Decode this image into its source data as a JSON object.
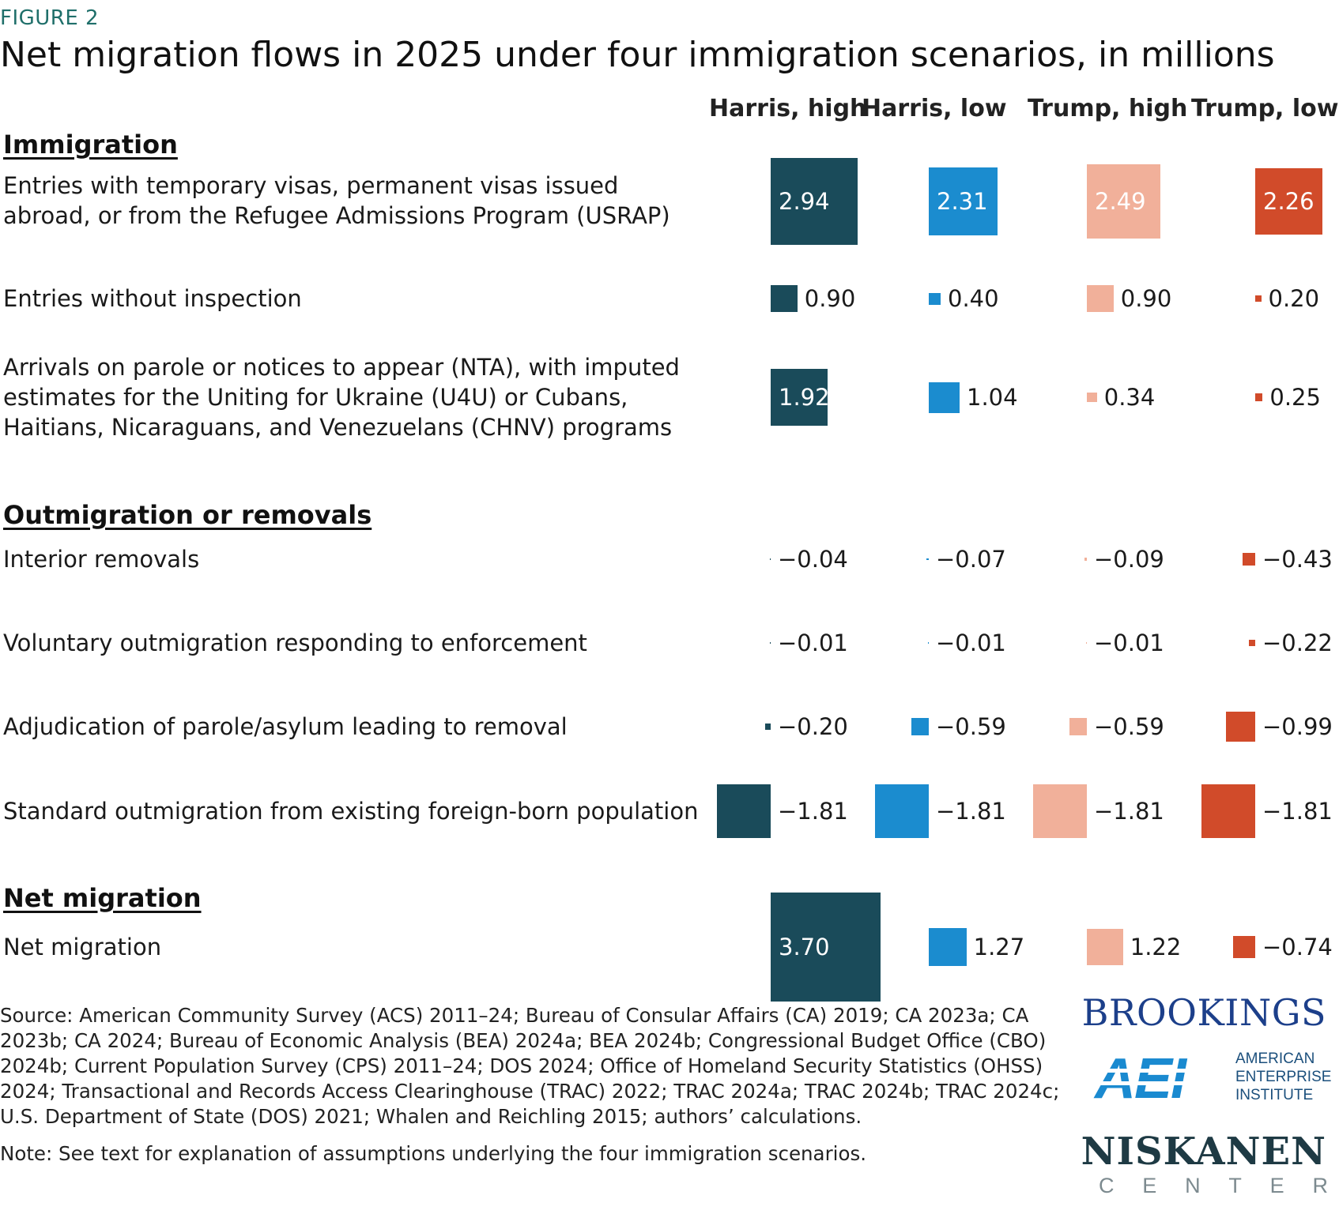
{
  "figure_label": "FIGURE 2",
  "chart_data": {
    "type": "table",
    "title": "Net migration flows in 2025 under four immigration scenarios, in millions",
    "columns": [
      {
        "name": "Harris, high",
        "color": "#1a4b5a"
      },
      {
        "name": "Harris, low",
        "color": "#1b8ccf"
      },
      {
        "name": "Trump, high",
        "color": "#f1b09a"
      },
      {
        "name": "Trump, low",
        "color": "#d14b2a"
      }
    ],
    "sections": [
      {
        "heading": "Immigration",
        "rows": [
          {
            "label": "Entries with temporary visas, permanent visas issued abroad, or from the Refugee Admissions Program (USRAP)",
            "values": [
              2.94,
              2.31,
              2.49,
              2.26
            ],
            "labels": [
              "2.94",
              "2.31",
              "2.49",
              "2.26"
            ]
          },
          {
            "label": "Entries without inspection",
            "values": [
              0.9,
              0.4,
              0.9,
              0.2
            ],
            "labels": [
              "0.90",
              "0.40",
              "0.90",
              "0.20"
            ]
          },
          {
            "label": "Arrivals on parole or notices to appear (NTA), with imputed estimates for the Uniting for Ukraine (U4U) or Cubans, Haitians, Nicaraguans, and Venezuelans (CHNV) programs",
            "values": [
              1.92,
              1.04,
              0.34,
              0.25
            ],
            "labels": [
              "1.92",
              "1.04",
              "0.34",
              "0.25"
            ]
          }
        ]
      },
      {
        "heading": "Outmigration or removals",
        "rows": [
          {
            "label": "Interior removals",
            "values": [
              -0.04,
              -0.07,
              -0.09,
              -0.43
            ],
            "labels": [
              "−0.04",
              "−0.07",
              "−0.09",
              "−0.43"
            ]
          },
          {
            "label": "Voluntary outmigration responding to enforcement",
            "values": [
              -0.01,
              -0.01,
              -0.01,
              -0.22
            ],
            "labels": [
              "−0.01",
              "−0.01",
              "−0.01",
              "−0.22"
            ]
          },
          {
            "label": "Adjudication of parole/asylum leading to removal",
            "values": [
              -0.2,
              -0.59,
              -0.59,
              -0.99
            ],
            "labels": [
              "−0.20",
              "−0.59",
              "−0.59",
              "−0.99"
            ]
          },
          {
            "label": "Standard outmigration from existing foreign-born population",
            "values": [
              -1.81,
              -1.81,
              -1.81,
              -1.81
            ],
            "labels": [
              "−1.81",
              "−1.81",
              "−1.81",
              "−1.81"
            ]
          }
        ]
      },
      {
        "heading": "Net migration",
        "rows": [
          {
            "label": "Net migration",
            "values": [
              3.7,
              1.27,
              1.22,
              -0.74
            ],
            "labels": [
              "3.70",
              "1.27",
              "1.22",
              "−0.74"
            ]
          }
        ]
      }
    ]
  },
  "source": "Source: American Community Survey (ACS) 2011–24; Bureau of Consular Affairs (CA) 2019; CA 2023a; CA 2023b; CA 2024; Bureau of Economic Analysis (BEA) 2024a; BEA 2024b; Congressional Budget Office (CBO) 2024b; Current Population Survey (CPS) 2011–24; DOS 2024; Office of Homeland Security Statistics (OHSS) 2024; Transactional and Records Access Clearinghouse (TRAC) 2022; TRAC 2024a; TRAC 2024b; TRAC 2024c; U.S. Department of State (DOS) 2021; Whalen and Reichling 2015; authors’ calculations.",
  "note": "Note: See text for explanation of assumptions underlying the four immigration scenarios.",
  "logos": {
    "brookings": "BROOKINGS",
    "aei_mark": "AEI",
    "aei_name": "AMERICAN ENTERPRISE INSTITUTE",
    "niskanen": "NISKANEN",
    "niskanen_sub": "CENTER"
  }
}
